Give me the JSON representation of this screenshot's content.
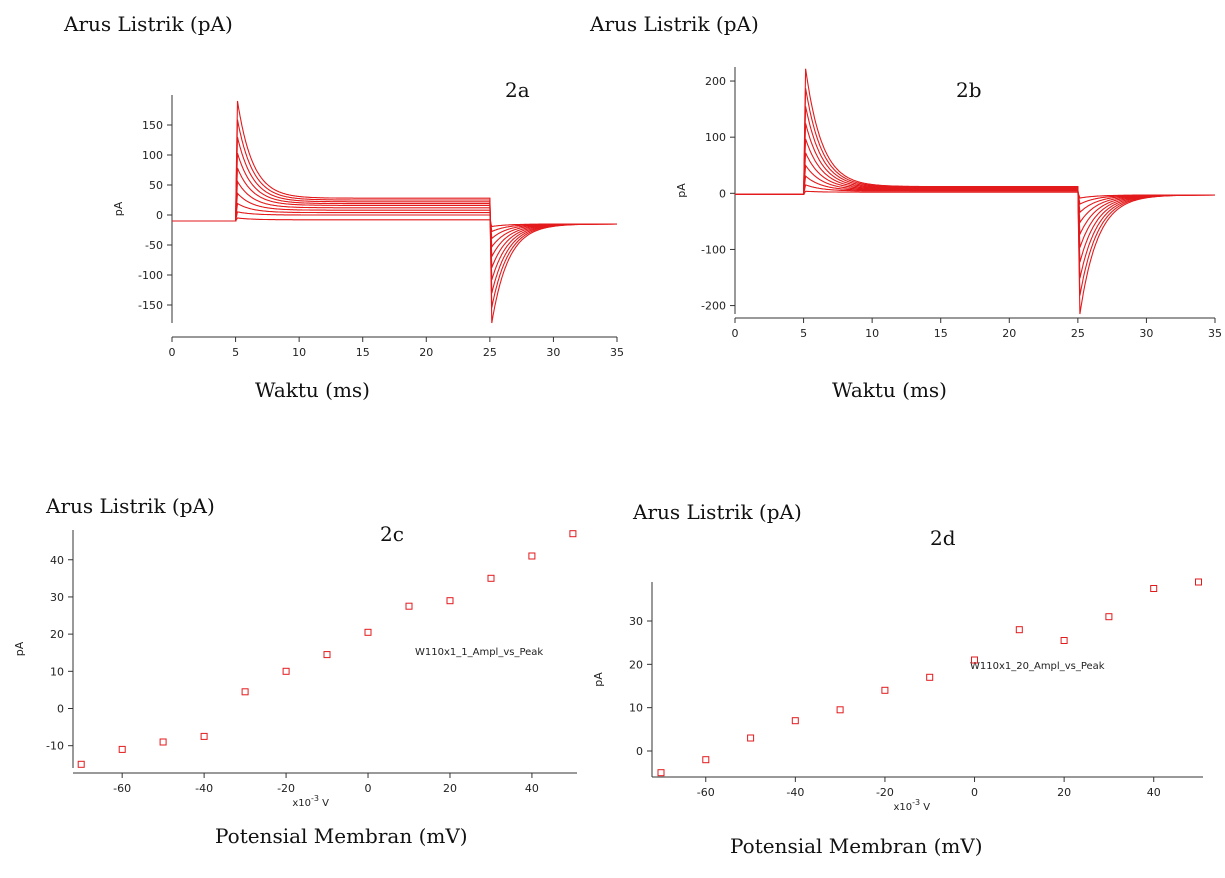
{
  "chart_data": [
    {
      "id": "2a",
      "type": "line",
      "panel_label": "2a",
      "y_title": "Arus Listrik (pA)",
      "x_title": "Waktu (ms)",
      "ylabel": "pA",
      "xlim": [
        0,
        35
      ],
      "ylim": [
        -180,
        200
      ],
      "xticks": [
        0,
        5,
        10,
        15,
        20,
        25,
        30,
        35
      ],
      "yticks": [
        -150,
        -100,
        -50,
        0,
        50,
        100,
        150
      ],
      "step_on": 5,
      "step_off": 25,
      "baseline": -10,
      "peak_on": 190,
      "peak_off": -180,
      "tail_final": -15,
      "sweep_end_values": [
        -8,
        0,
        4,
        8,
        12,
        16,
        19,
        22,
        25,
        28
      ],
      "color": "#e31a1c"
    },
    {
      "id": "2b",
      "type": "line",
      "panel_label": "2b",
      "y_title": "Arus Listrik (pA)",
      "x_title": "Waktu (ms)",
      "ylabel": "pA",
      "xlim": [
        0,
        35
      ],
      "ylim": [
        -215,
        225
      ],
      "xticks": [
        0,
        5,
        10,
        15,
        20,
        25,
        30,
        35
      ],
      "yticks": [
        -200,
        -100,
        0,
        100,
        200
      ],
      "step_on": 5,
      "step_off": 25,
      "baseline": -2,
      "peak_on": 222,
      "peak_off": -215,
      "tail_final": -3,
      "sweep_end_values": [
        2,
        4,
        5,
        6,
        7,
        8,
        9,
        10,
        11,
        12
      ],
      "color": "#e31a1c"
    },
    {
      "id": "2c",
      "type": "scatter",
      "panel_label": "2c",
      "y_title": "Arus Listrik (pA)",
      "x_title": "Potensial Membran (mV)",
      "ylabel": "pA",
      "x_unit": "x10",
      "x_unit_exp": "-3",
      "x_unit_suffix": " V",
      "legend": "W110x1_1_Ampl_vs_Peak",
      "xlim": [
        -72,
        51
      ],
      "ylim": [
        -16,
        48
      ],
      "xticks": [
        -60,
        -40,
        -20,
        0,
        20,
        40
      ],
      "yticks": [
        -10,
        0,
        10,
        20,
        30,
        40
      ],
      "x": [
        -70,
        -60,
        -50,
        -40,
        -30,
        -20,
        -10,
        0,
        10,
        20,
        30,
        40,
        50
      ],
      "y": [
        -15,
        -11,
        -9,
        -7.5,
        4.5,
        10,
        14.5,
        20.5,
        27.5,
        29,
        35,
        41,
        47
      ],
      "color": "#e31a1c"
    },
    {
      "id": "2d",
      "type": "scatter",
      "panel_label": "2d",
      "y_title": "Arus Listrik (pA)",
      "x_title": "Potensial Membran (mV)",
      "ylabel": "pA",
      "x_unit": "x10",
      "x_unit_exp": "-3",
      "x_unit_suffix": " V",
      "legend": "W110x1_20_Ampl_vs_Peak",
      "xlim": [
        -72,
        51
      ],
      "ylim": [
        -6,
        39
      ],
      "xticks": [
        -60,
        -40,
        -20,
        0,
        20,
        40
      ],
      "yticks": [
        0,
        10,
        20,
        30
      ],
      "x": [
        -70,
        -60,
        -50,
        -40,
        -30,
        -20,
        -10,
        0,
        10,
        20,
        30,
        40,
        50
      ],
      "y": [
        -5,
        -2,
        3,
        7,
        9.5,
        14,
        17,
        21,
        28,
        25.5,
        31,
        37.5,
        39
      ],
      "color": "#e31a1c"
    }
  ]
}
